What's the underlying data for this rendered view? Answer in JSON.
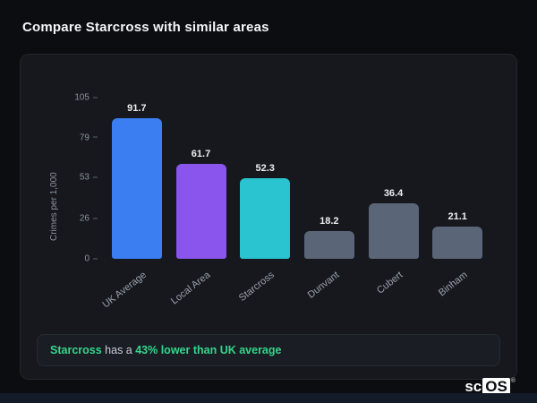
{
  "page": {
    "title": "Compare Starcross with similar areas"
  },
  "chart_data": {
    "type": "bar",
    "title": "",
    "categories": [
      "UK Average",
      "Local Area",
      "Starcross",
      "Dunvant",
      "Cubert",
      "Binham"
    ],
    "values": [
      91.7,
      61.7,
      52.3,
      18.2,
      36.4,
      21.1
    ],
    "value_labels": [
      "91.7",
      "61.7",
      "52.3",
      "18.2",
      "36.4",
      "21.1"
    ],
    "colors": [
      "#3b7ef2",
      "#8a55ec",
      "#29c4cf",
      "#5a6577",
      "#5a6577",
      "#5a6577"
    ],
    "xlabel": "",
    "ylabel": "Crimes per 1,000",
    "ylim": [
      0,
      105
    ],
    "yticks": [
      0,
      26,
      53,
      79,
      105
    ],
    "grid": false,
    "legend": false
  },
  "note": {
    "subject": "Starcross",
    "middle": " has a ",
    "highlight": "43% lower than UK average"
  },
  "logo": {
    "prefix": "sc",
    "suffix": "OS",
    "reg": "®"
  },
  "colors": {
    "background": "#0c0d10",
    "card": "#16181d",
    "note_bg": "#1a1e24",
    "accent_green": "#34d58c",
    "bar_blue": "#3b7ef2",
    "bar_purple": "#8a55ec",
    "bar_teal": "#29c4cf",
    "bar_gray": "#5a6577"
  }
}
